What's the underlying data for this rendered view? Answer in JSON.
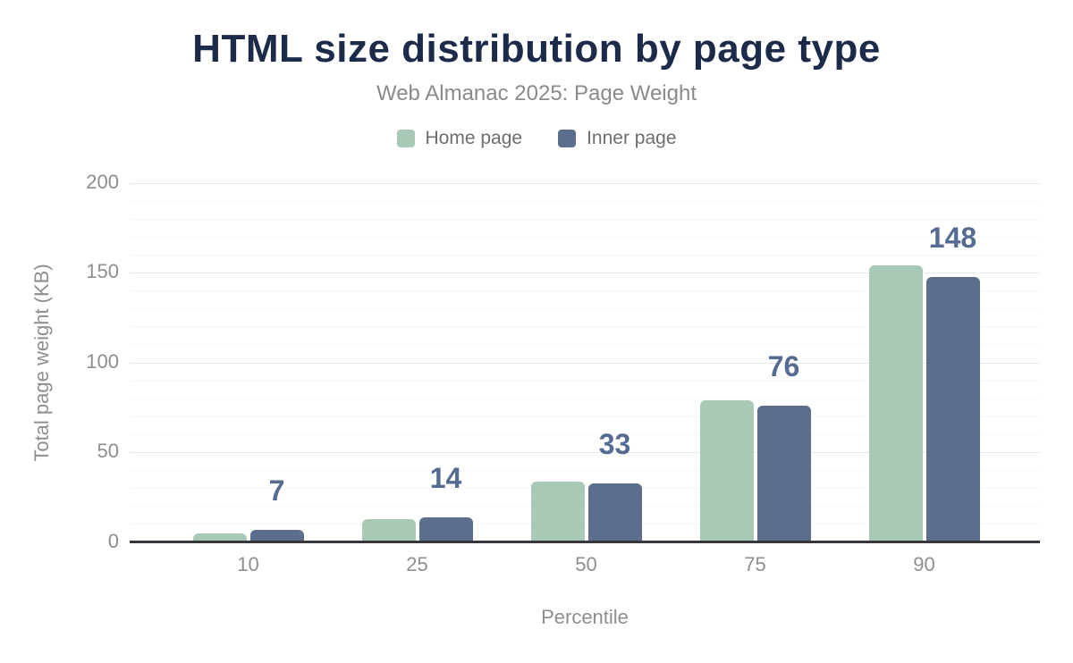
{
  "header": {
    "title": "HTML size distribution by page type",
    "subtitle": "Web Almanac 2025: Page Weight"
  },
  "chart_data": {
    "type": "bar",
    "title": "HTML size distribution by page type",
    "subtitle": "Web Almanac 2025: Page Weight",
    "categories": [
      10,
      25,
      50,
      75,
      90
    ],
    "series": [
      {
        "name": "Home page",
        "color": "#a8c9b6",
        "values": [
          5,
          13,
          34,
          79,
          154
        ]
      },
      {
        "name": "Inner page",
        "color": "#5c6e8b",
        "values": [
          7,
          14,
          33,
          76,
          148
        ]
      }
    ],
    "value_labels": {
      "series": "Inner page",
      "values": [
        7,
        14,
        33,
        76,
        148
      ],
      "color": "#556b91"
    },
    "xlabel": "Percentile",
    "ylabel": "Total page weight (KB)",
    "ylim": [
      0,
      200
    ],
    "yticks": [
      0,
      50,
      100,
      150,
      200
    ],
    "minor_tick_step": 10,
    "grid": "horizontal",
    "legend_position": "top"
  },
  "colors": {
    "title": "#1c2b4a",
    "subtitle": "#8a8a8a",
    "axis_text": "#8e8e8e",
    "legend_text": "#6e6e6e",
    "axis_line": "#37373d",
    "grid_major": "#e9e9e9",
    "grid_minor": "#f6f6f6",
    "background": "#ffffff"
  }
}
